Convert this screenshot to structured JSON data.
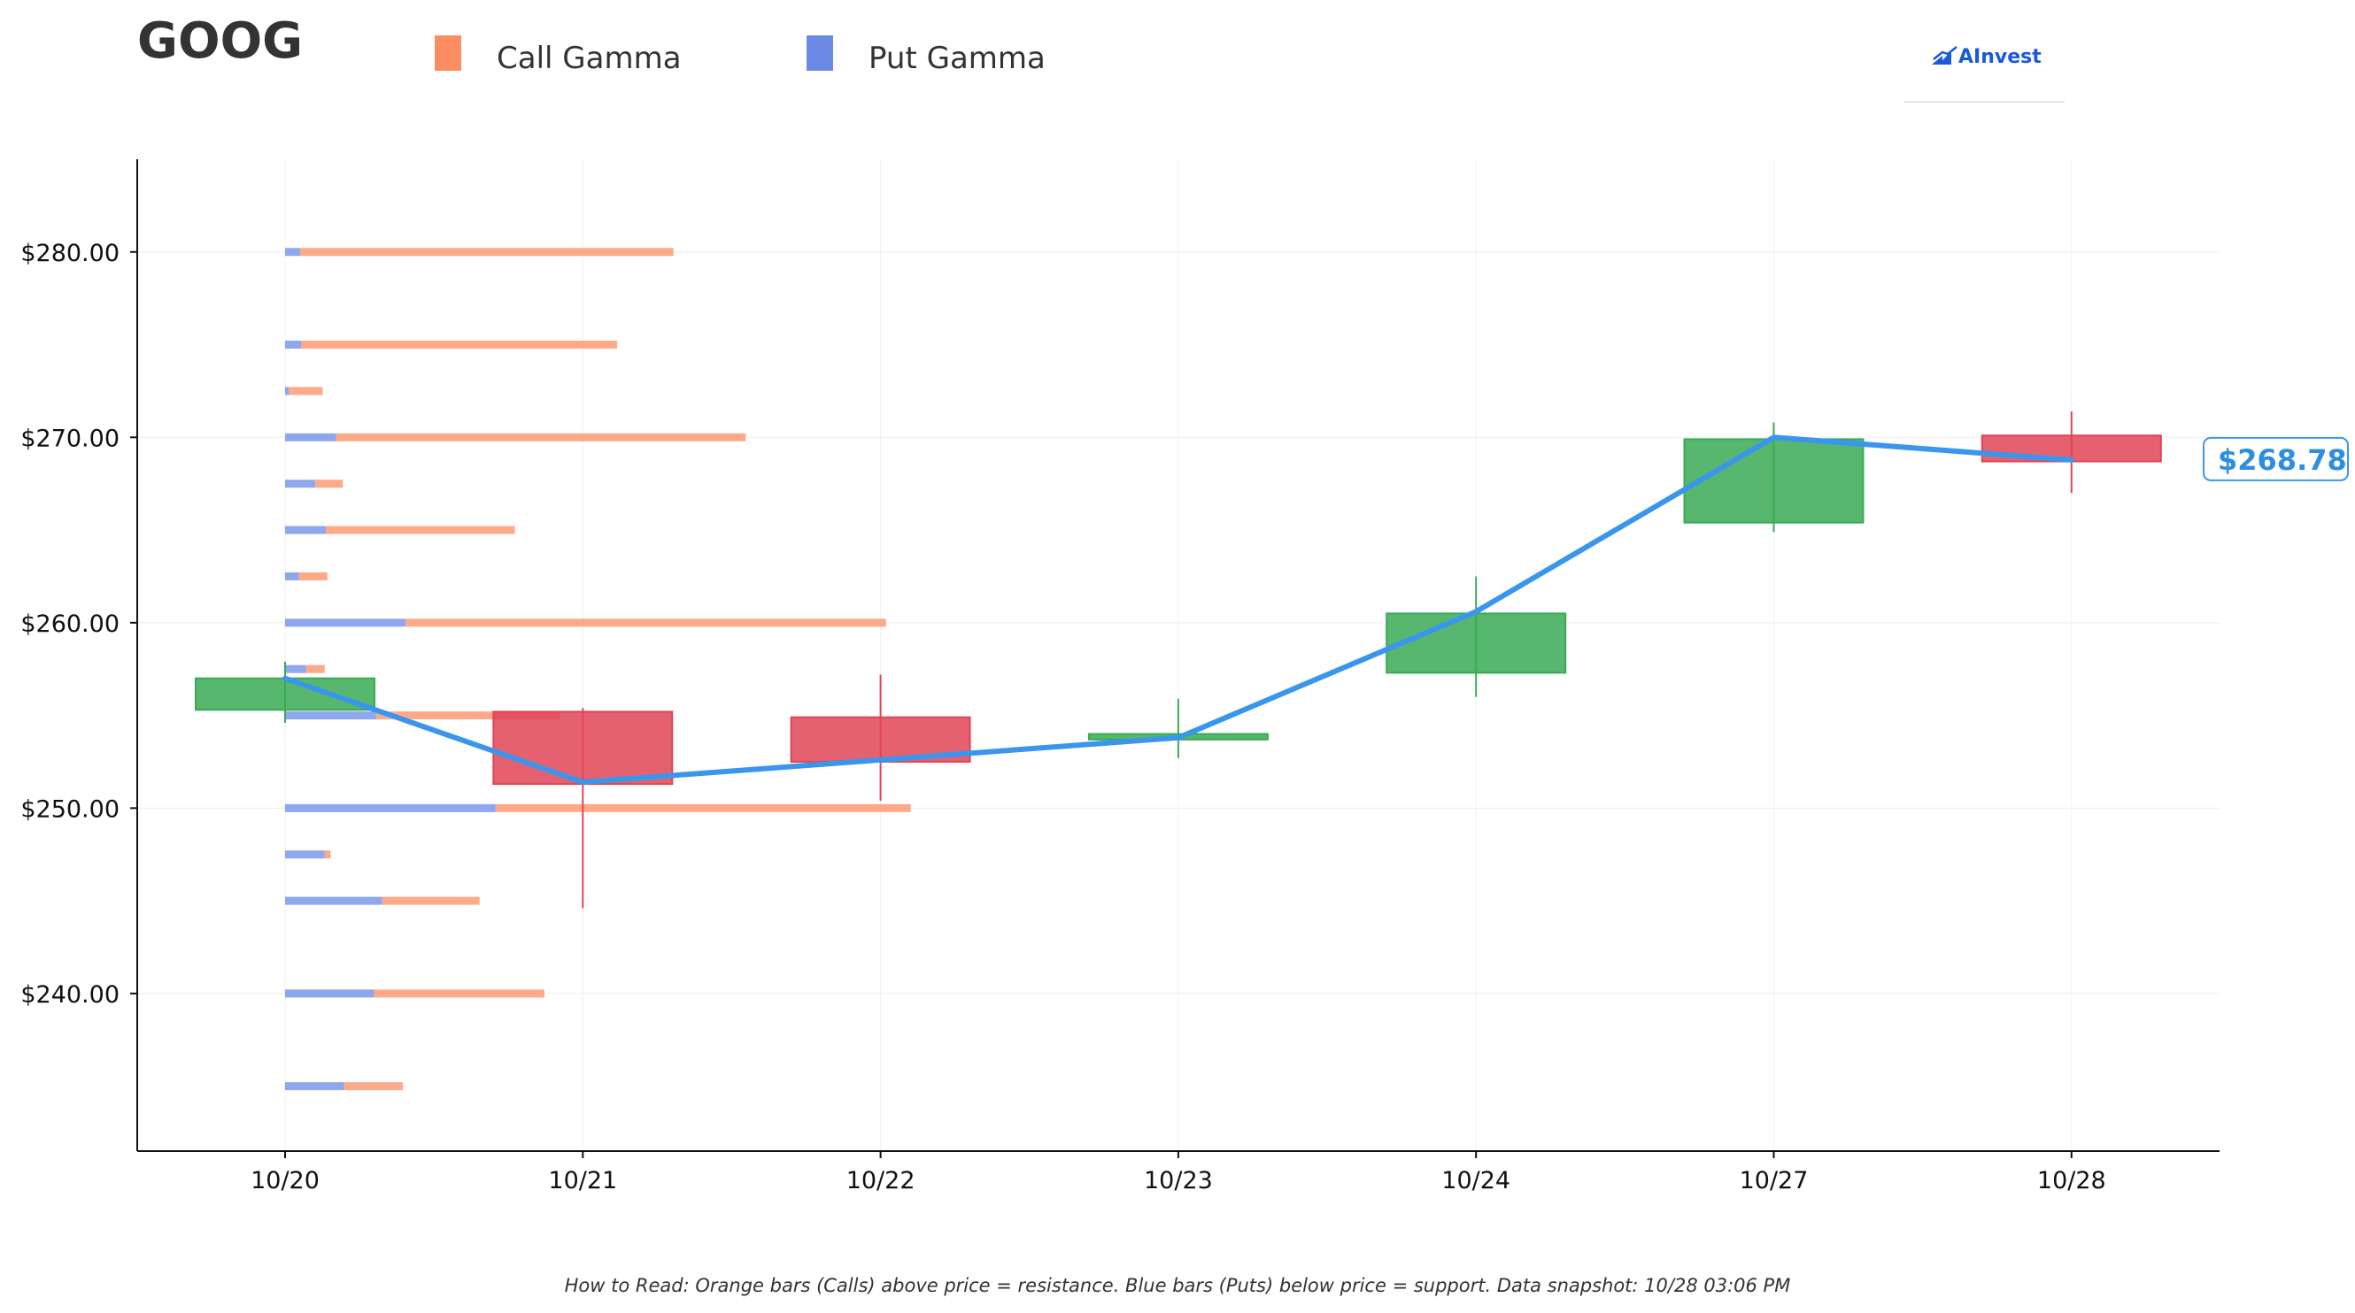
{
  "header": {
    "ticker": "GOOG",
    "brand": "AInvest"
  },
  "footnote": "How to Read: Orange bars (Calls) above price = resistance. Blue bars (Puts) below price = support. Data snapshot: 10/28 03:06 PM",
  "colors": {
    "call": "#fc8d62",
    "put": "#6a8ae6",
    "up": "#3aaa55",
    "down": "#e04556",
    "price_line": "#3a96ec"
  },
  "chart_data": {
    "type": "candlestick",
    "legend": [
      {
        "name": "Call Gamma",
        "color": "#fc8d62"
      },
      {
        "name": "Put Gamma",
        "color": "#6a8ae6"
      }
    ],
    "categories": [
      "10/20",
      "10/21",
      "10/22",
      "10/23",
      "10/24",
      "10/27",
      "10/28"
    ],
    "y_ticks": [
      "$240.00",
      "$250.00",
      "$260.00",
      "$270.00",
      "$280.00"
    ],
    "y_tick_values": [
      240,
      250,
      260,
      270,
      280
    ],
    "ylim": [
      231.5,
      285
    ],
    "candles": [
      {
        "date": "10/20",
        "open": 255.3,
        "high": 257.9,
        "low": 254.6,
        "close": 257.0
      },
      {
        "date": "10/21",
        "open": 255.2,
        "high": 255.4,
        "low": 244.6,
        "close": 251.3
      },
      {
        "date": "10/22",
        "open": 254.9,
        "high": 257.2,
        "low": 250.4,
        "close": 252.5
      },
      {
        "date": "10/23",
        "open": 253.7,
        "high": 255.9,
        "low": 252.7,
        "close": 254.0
      },
      {
        "date": "10/24",
        "open": 257.3,
        "high": 262.5,
        "low": 256.0,
        "close": 260.5
      },
      {
        "date": "10/27",
        "open": 265.4,
        "high": 270.8,
        "low": 264.9,
        "close": 269.9
      },
      {
        "date": "10/28",
        "open": 270.1,
        "high": 271.4,
        "low": 267.0,
        "close": 268.7
      }
    ],
    "price_line": {
      "dates": [
        "10/20",
        "10/21",
        "10/22",
        "10/23",
        "10/24",
        "10/27",
        "10/28"
      ],
      "values": [
        257.0,
        251.4,
        252.6,
        253.8,
        260.6,
        270.0,
        268.78
      ]
    },
    "last_price_label": "$268.78",
    "gamma_bars": [
      {
        "strike": 280.0,
        "put": 0.28,
        "call": 7.25
      },
      {
        "strike": 275.0,
        "put": 0.3,
        "call": 6.2
      },
      {
        "strike": 272.5,
        "put": 0.07,
        "call": 0.7
      },
      {
        "strike": 270.0,
        "put": 0.95,
        "call": 8.6
      },
      {
        "strike": 267.5,
        "put": 0.56,
        "call": 1.08
      },
      {
        "strike": 265.0,
        "put": 0.76,
        "call": 4.29
      },
      {
        "strike": 262.5,
        "put": 0.26,
        "call": 0.79
      },
      {
        "strike": 260.0,
        "put": 2.25,
        "call": 11.22
      },
      {
        "strike": 257.5,
        "put": 0.39,
        "call": 0.74
      },
      {
        "strike": 255.0,
        "put": 1.7,
        "call": 5.13
      },
      {
        "strike": 250.0,
        "put": 3.93,
        "call": 11.68
      },
      {
        "strike": 247.5,
        "put": 0.74,
        "call": 0.85
      },
      {
        "strike": 245.0,
        "put": 1.81,
        "call": 3.63
      },
      {
        "strike": 240.0,
        "put": 1.66,
        "call": 4.84
      },
      {
        "strike": 235.0,
        "put": 1.1,
        "call": 2.2
      }
    ]
  }
}
